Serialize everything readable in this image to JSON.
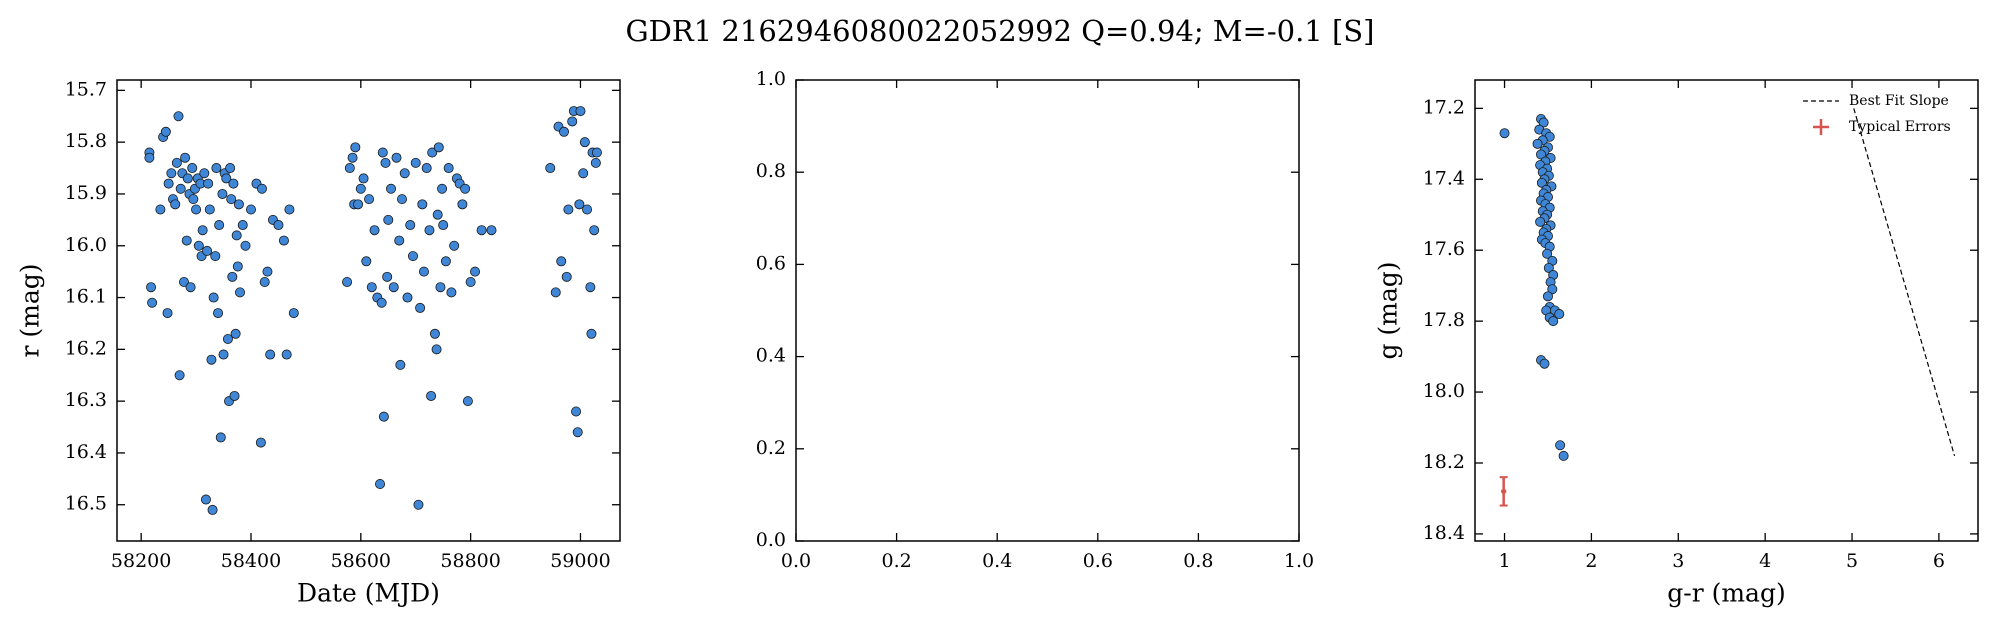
{
  "title": "GDR1 2162946080022052992  Q=0.94; M=-0.1 [S]",
  "chart_data": [
    {
      "type": "scatter",
      "xlabel": "Date (MJD)",
      "ylabel": "r (mag)",
      "xlim": [
        58156,
        59072
      ],
      "xticks": [
        58200,
        58400,
        58600,
        58800,
        59000
      ],
      "ylim": [
        15.68,
        16.57
      ],
      "y_inverted": true,
      "yticks": [
        15.7,
        15.8,
        15.9,
        {
          "value": 16.0,
          "label": "16.0"
        },
        16.1,
        16.2,
        16.3,
        16.4,
        16.5
      ],
      "series": [
        {
          "color": "#3f87d6",
          "x": [
            58215,
            58215,
            58218,
            58220,
            58235,
            58240,
            58245,
            58248,
            58250,
            58255,
            58258,
            58262,
            58265,
            58268,
            58270,
            58272,
            58275,
            58278,
            58280,
            58283,
            58285,
            58288,
            58290,
            58293,
            58295,
            58298,
            58300,
            58303,
            58305,
            58308,
            58310,
            58312,
            58315,
            58318,
            58320,
            58322,
            58325,
            58328,
            58330,
            58332,
            58335,
            58337,
            58340,
            58342,
            58345,
            58348,
            58350,
            58352,
            58355,
            58358,
            58360,
            58362,
            58364,
            58366,
            58368,
            58370,
            58372,
            58374,
            58376,
            58378,
            58380,
            58385,
            58390,
            58400,
            58410,
            58418,
            58420,
            58425,
            58430,
            58435,
            58440,
            58450,
            58460,
            58465,
            58470,
            58478,
            58575,
            58580,
            58585,
            58588,
            58590,
            58595,
            58600,
            58605,
            58610,
            58615,
            58620,
            58625,
            58630,
            58635,
            58638,
            58640,
            58642,
            58645,
            58648,
            58650,
            58655,
            58660,
            58665,
            58670,
            58672,
            58675,
            58680,
            58685,
            58690,
            58695,
            58700,
            58705,
            58708,
            58712,
            58715,
            58720,
            58725,
            58728,
            58730,
            58735,
            58738,
            58740,
            58742,
            58745,
            58748,
            58750,
            58755,
            58760,
            58765,
            58770,
            58775,
            58780,
            58785,
            58790,
            58795,
            58800,
            58808,
            58820,
            58838,
            58945,
            58955,
            58960,
            58965,
            58970,
            58975,
            58978,
            58985,
            58988,
            58992,
            58995,
            58998,
            59000,
            59005,
            59008,
            59012,
            59018,
            59020,
            59022,
            59025,
            59028,
            59030
          ],
          "values": [
            15.82,
            15.83,
            16.08,
            16.11,
            15.93,
            15.79,
            15.78,
            16.13,
            15.88,
            15.86,
            15.91,
            15.92,
            15.84,
            15.75,
            16.25,
            15.89,
            15.86,
            16.07,
            15.83,
            15.99,
            15.87,
            15.9,
            16.08,
            15.85,
            15.91,
            15.89,
            15.93,
            15.87,
            16.0,
            15.88,
            16.02,
            15.97,
            15.86,
            16.49,
            16.01,
            15.88,
            15.93,
            16.22,
            16.51,
            16.1,
            16.02,
            15.85,
            16.13,
            15.96,
            16.37,
            15.9,
            16.21,
            15.86,
            15.87,
            16.18,
            16.3,
            15.85,
            15.91,
            16.06,
            15.88,
            16.29,
            16.17,
            15.98,
            16.04,
            15.92,
            16.09,
            15.96,
            16.0,
            15.93,
            15.88,
            16.38,
            15.89,
            16.07,
            16.05,
            16.21,
            15.95,
            15.96,
            15.99,
            16.21,
            15.93,
            16.13,
            16.07,
            15.85,
            15.83,
            15.92,
            15.81,
            15.92,
            15.89,
            15.87,
            16.03,
            15.91,
            16.08,
            15.97,
            16.1,
            16.46,
            16.11,
            15.82,
            16.33,
            15.84,
            16.06,
            15.95,
            15.89,
            16.08,
            15.83,
            15.99,
            16.23,
            15.91,
            15.86,
            16.1,
            15.96,
            16.02,
            15.84,
            16.5,
            16.12,
            15.92,
            16.05,
            15.85,
            15.97,
            16.29,
            15.82,
            16.17,
            16.2,
            15.94,
            15.81,
            16.08,
            15.89,
            15.96,
            16.03,
            15.85,
            16.09,
            16.0,
            15.87,
            15.88,
            15.92,
            15.89,
            16.3,
            16.07,
            16.05,
            15.97,
            15.97,
            15.85,
            16.09,
            15.77,
            16.03,
            15.78,
            16.06,
            15.93,
            15.76,
            15.74,
            16.32,
            16.36,
            15.92,
            15.74,
            15.86,
            15.8,
            15.93,
            16.08,
            16.17,
            15.82,
            15.97,
            15.84,
            15.82
          ]
        }
      ]
    },
    {
      "type": "empty",
      "xlim": [
        0,
        1
      ],
      "xticks": [
        {
          "value": 0,
          "label": "0.0"
        },
        0.2,
        0.4,
        0.6,
        0.8,
        {
          "value": 1,
          "label": "1.0"
        }
      ],
      "ylim": [
        0,
        1
      ],
      "yticks": [
        {
          "value": 0,
          "label": "0.0"
        },
        0.2,
        0.4,
        0.6,
        0.8,
        {
          "value": 1,
          "label": "1.0"
        }
      ]
    },
    {
      "type": "scatter",
      "xlabel": "g-r (mag)",
      "ylabel": "g (mag)",
      "xlim": [
        0.66,
        6.45
      ],
      "xticks": [
        1,
        2,
        3,
        4,
        5,
        6
      ],
      "ylim": [
        17.12,
        18.42
      ],
      "y_inverted": true,
      "yticks": [
        17.2,
        17.4,
        17.6,
        17.8,
        {
          "value": 18.0,
          "label": "18.0"
        },
        18.2,
        18.4
      ],
      "legend": "upper right",
      "series": [
        {
          "color": "#3f87d6",
          "x": [
            1.0,
            1.42,
            1.45,
            1.4,
            1.48,
            1.52,
            1.44,
            1.38,
            1.5,
            1.46,
            1.42,
            1.53,
            1.47,
            1.41,
            1.49,
            1.44,
            1.51,
            1.46,
            1.43,
            1.54,
            1.48,
            1.45,
            1.5,
            1.42,
            1.47,
            1.52,
            1.44,
            1.49,
            1.46,
            1.41,
            1.53,
            1.48,
            1.45,
            1.5,
            1.43,
            1.47,
            1.52,
            1.49,
            1.55,
            1.51,
            1.56,
            1.53,
            1.55,
            1.5,
            1.52,
            1.48,
            1.58,
            1.63,
            1.52,
            1.56,
            1.42,
            1.46,
            1.64,
            1.68
          ],
          "values": [
            17.27,
            17.23,
            17.24,
            17.26,
            17.27,
            17.28,
            17.29,
            17.3,
            17.31,
            17.32,
            17.33,
            17.34,
            17.35,
            17.36,
            17.37,
            17.38,
            17.39,
            17.4,
            17.41,
            17.42,
            17.43,
            17.44,
            17.45,
            17.46,
            17.47,
            17.48,
            17.49,
            17.5,
            17.51,
            17.52,
            17.53,
            17.54,
            17.55,
            17.56,
            17.57,
            17.58,
            17.59,
            17.61,
            17.63,
            17.65,
            17.67,
            17.69,
            17.71,
            17.73,
            17.76,
            17.77,
            17.77,
            17.78,
            17.79,
            17.8,
            17.91,
            17.92,
            18.15,
            18.18
          ]
        },
        {
          "type": "line",
          "name": "Best Fit Slope",
          "color": "#000000",
          "style": "dashed",
          "x": [
            5.02,
            6.18
          ],
          "values": [
            17.2,
            18.18
          ]
        },
        {
          "type": "errorbar",
          "name": "Typical Errors",
          "color": "#d9534f",
          "x": [
            0.99
          ],
          "values": [
            18.28
          ],
          "xerr": [
            0.03
          ],
          "yerr": [
            0.04
          ]
        }
      ]
    }
  ]
}
